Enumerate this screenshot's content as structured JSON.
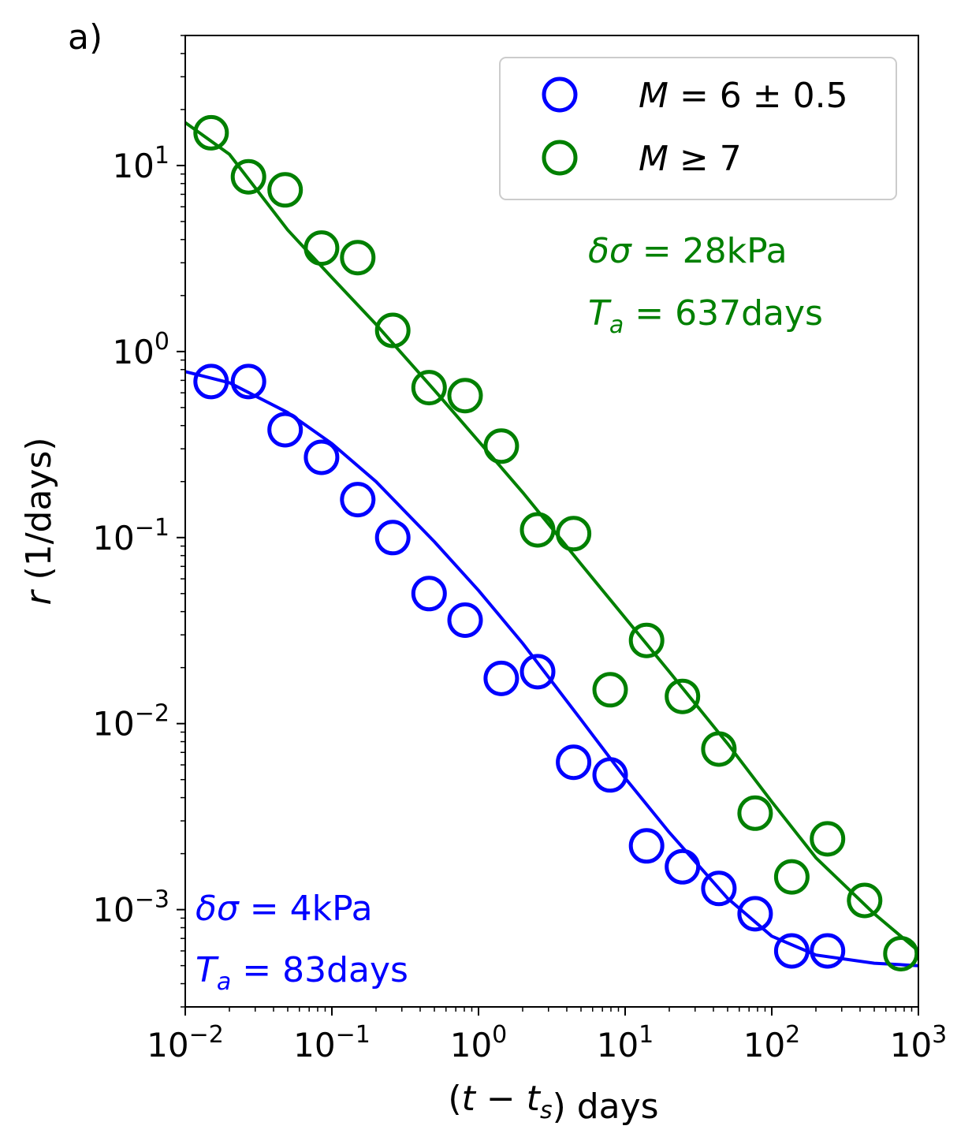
{
  "panel_label": "a)",
  "chart_data": {
    "type": "scatter",
    "xscale": "log",
    "yscale": "log",
    "xlim": [
      0.01,
      1000
    ],
    "ylim": [
      0.0003,
      50
    ],
    "xlabel": "(t − t_s) days",
    "ylabel": "r (1/days)",
    "x_ticks": [
      {
        "value": 0.01,
        "base": "10",
        "exp": "−2"
      },
      {
        "value": 0.1,
        "base": "10",
        "exp": "−1"
      },
      {
        "value": 1,
        "base": "10",
        "exp": "0"
      },
      {
        "value": 10,
        "base": "10",
        "exp": "1"
      },
      {
        "value": 100,
        "base": "10",
        "exp": "2"
      },
      {
        "value": 1000,
        "base": "10",
        "exp": "3"
      }
    ],
    "y_ticks": [
      {
        "value": 0.001,
        "base": "10",
        "exp": "−3"
      },
      {
        "value": 0.01,
        "base": "10",
        "exp": "−2"
      },
      {
        "value": 0.1,
        "base": "10",
        "exp": "−1"
      },
      {
        "value": 1,
        "base": "10",
        "exp": "0"
      },
      {
        "value": 10,
        "base": "10",
        "exp": "1"
      }
    ],
    "legend_position": "top-right",
    "series": [
      {
        "name": "M = 6 ± 0.5",
        "color": "#0000ff",
        "marker": "open-circle",
        "x": [
          0.015,
          0.027,
          0.048,
          0.085,
          0.15,
          0.26,
          0.46,
          0.81,
          1.43,
          2.53,
          4.45,
          7.9,
          14,
          24.6,
          43.6,
          77,
          137,
          240
        ],
        "y": [
          0.69,
          0.69,
          0.38,
          0.27,
          0.16,
          0.1,
          0.05,
          0.036,
          0.0175,
          0.019,
          0.0062,
          0.0053,
          0.0022,
          0.0017,
          0.0013,
          0.00095,
          0.0006,
          0.0006
        ],
        "fit": {
          "x": [
            0.01,
            0.02,
            0.05,
            0.1,
            0.2,
            0.5,
            1,
            2,
            5,
            10,
            20,
            50,
            100,
            200,
            500,
            1000
          ],
          "y": [
            0.78,
            0.68,
            0.47,
            0.32,
            0.2,
            0.095,
            0.052,
            0.027,
            0.0105,
            0.0051,
            0.0026,
            0.00115,
            0.00072,
            0.00057,
            0.000515,
            0.0005
          ]
        },
        "annotation": {
          "line1": "δσ = 4kPa",
          "line2": "T_a = 83days"
        }
      },
      {
        "name": "M ≥ 7",
        "color": "#008000",
        "marker": "open-circle",
        "x": [
          0.015,
          0.027,
          0.048,
          0.085,
          0.15,
          0.26,
          0.46,
          0.81,
          1.43,
          2.53,
          4.45,
          7.9,
          14,
          24.6,
          43.6,
          77,
          137,
          240,
          430,
          760
        ],
        "y": [
          15,
          8.7,
          7.4,
          3.6,
          3.2,
          1.3,
          0.64,
          0.58,
          0.31,
          0.11,
          0.105,
          0.0152,
          0.028,
          0.014,
          0.0073,
          0.0033,
          0.0015,
          0.0024,
          0.00112,
          0.00058
        ],
        "fit": {
          "x": [
            0.01,
            0.02,
            0.05,
            0.1,
            0.2,
            0.5,
            1,
            2,
            5,
            10,
            20,
            50,
            100,
            200,
            500,
            1000
          ],
          "y": [
            17,
            11.5,
            4.5,
            2.5,
            1.4,
            0.62,
            0.33,
            0.175,
            0.072,
            0.037,
            0.019,
            0.0078,
            0.0038,
            0.0019,
            0.00095,
            0.0006
          ]
        },
        "annotation": {
          "line1": "δσ = 28kPa",
          "line2": "T_a = 637days"
        }
      }
    ]
  }
}
